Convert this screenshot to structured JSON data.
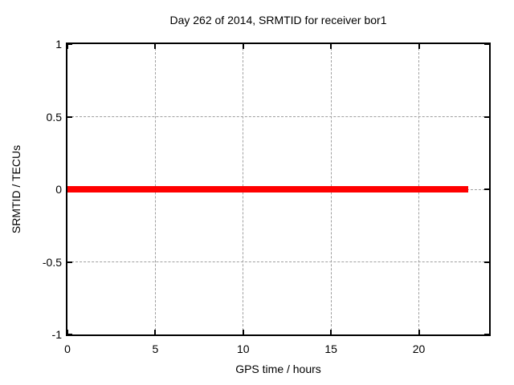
{
  "chart_data": {
    "type": "line",
    "title": "Day 262 of 2014, SRMTID for receiver bor1",
    "xlabel": "GPS time / hours",
    "ylabel": "SRMTID / TECUs",
    "xlim": [
      0,
      24
    ],
    "ylim": [
      -1,
      1
    ],
    "xticks": [
      0,
      5,
      10,
      15,
      20
    ],
    "xtick_labels": [
      "0",
      "5",
      "10",
      "15",
      "20"
    ],
    "yticks": [
      -1,
      -0.5,
      0,
      0.5,
      1
    ],
    "ytick_labels": [
      "-1",
      "-0.5",
      "0",
      "0.5",
      "1"
    ],
    "grid": true,
    "legend": "none",
    "series": [
      {
        "name": "SRMTID",
        "color": "#ff0000",
        "x": [
          0,
          22.8
        ],
        "y": [
          0,
          0
        ],
        "line_width": 8
      }
    ],
    "colors": {
      "background": "#ffffff",
      "border": "#000000",
      "grid": "#a0a0a0",
      "text": "#000000"
    }
  }
}
